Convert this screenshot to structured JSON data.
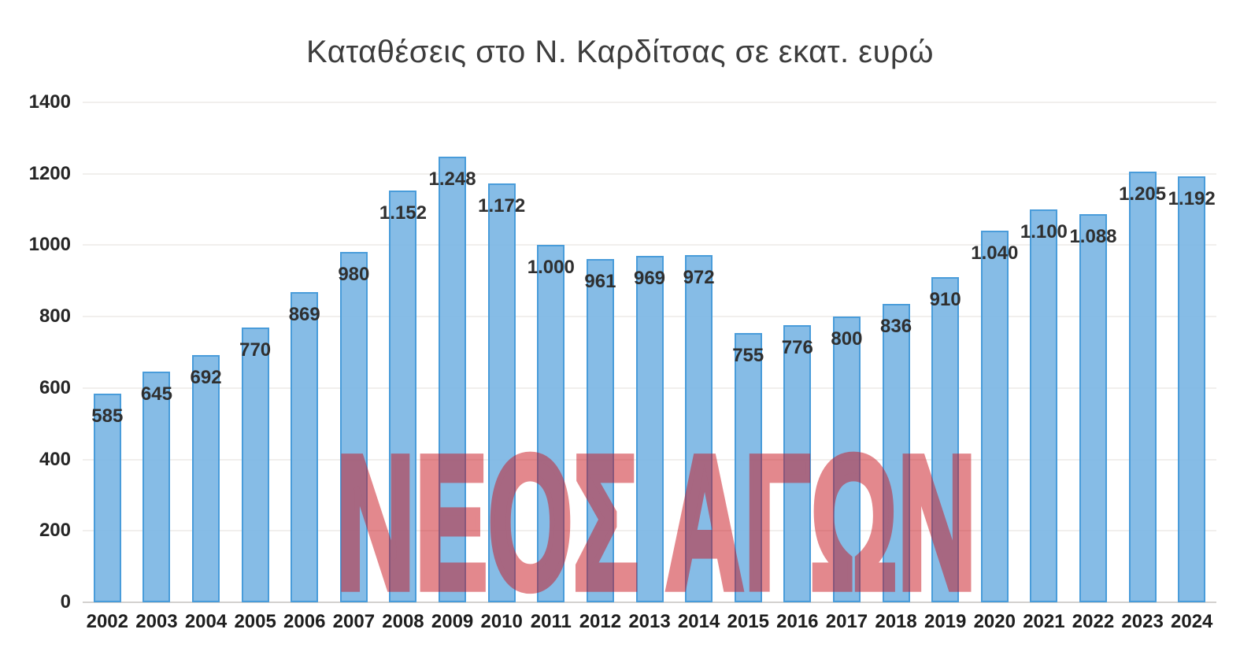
{
  "title": "Καταθέσεις στο Ν. Καρδίτσας σε εκατ. ευρώ",
  "watermark": {
    "text": "ΝΕΟΣ ΑΓΩΝ"
  },
  "colors": {
    "bar_fill": "#7db6e4",
    "bar_border": "#3e96d7",
    "watermark_red": "#c8141e",
    "gridline": "#f1efed",
    "axis_line": "#d3d1cf",
    "title_text": "#3d3d3d",
    "tick_text": "#262626",
    "value_label_text": "#2f2f2f"
  },
  "chart_data": {
    "type": "bar",
    "title": "Καταθέσεις στο Ν. Καρδίτσας σε εκατ. ευρώ",
    "xlabel": "",
    "ylabel": "",
    "categories": [
      "2002",
      "2003",
      "2004",
      "2005",
      "2006",
      "2007",
      "2008",
      "2009",
      "2010",
      "2011",
      "2012",
      "2013",
      "2014",
      "2015",
      "2016",
      "2017",
      "2018",
      "2019",
      "2020",
      "2021",
      "2022",
      "2023",
      "2024"
    ],
    "values": [
      585,
      645,
      692,
      770,
      869,
      980,
      1152,
      1248,
      1172,
      1000,
      961,
      969,
      972,
      755,
      776,
      800,
      836,
      910,
      1040,
      1100,
      1088,
      1205,
      1192
    ],
    "value_labels": [
      "585",
      "645",
      "692",
      "770",
      "869",
      "980",
      "1.152",
      "1.248",
      "1.172",
      "1.000",
      "961",
      "969",
      "972",
      "755",
      "776",
      "800",
      "836",
      "910",
      "1.040",
      "1.100",
      "1.088",
      "1.205",
      "1.192"
    ],
    "ylim": [
      0,
      1400
    ],
    "yticks": [
      0,
      200,
      400,
      600,
      800,
      1000,
      1200,
      1400
    ],
    "grid": true,
    "legend": false,
    "data_label_position": "inside-end"
  }
}
